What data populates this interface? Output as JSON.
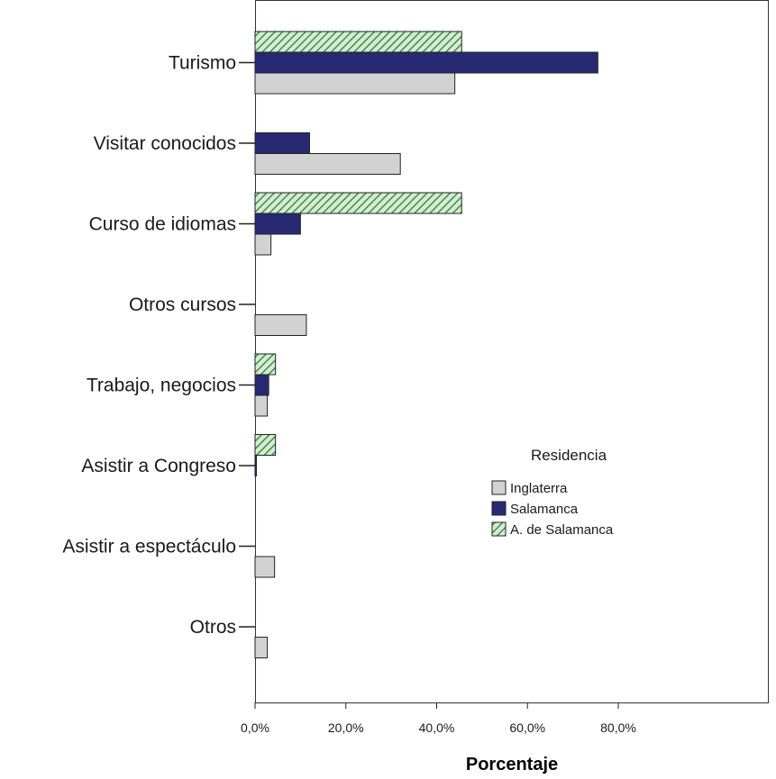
{
  "chart_data": {
    "type": "bar",
    "orientation": "horizontal",
    "categories": [
      "Turismo",
      "Visitar conocidos",
      "Curso de idiomas",
      "Otros cursos",
      "Trabajo, negocios",
      "Asistir a Congreso",
      "Asistir a espectáculo",
      "Otros"
    ],
    "series": [
      {
        "name": "A. de Salamanca",
        "values": [
          45.5,
          0,
          45.5,
          0,
          4.5,
          4.5,
          0,
          0
        ],
        "color": "#d4ecd4",
        "hatch": "diagonal"
      },
      {
        "name": "Salamanca",
        "values": [
          75.5,
          12.0,
          10.0,
          0,
          3.0,
          0.3,
          0,
          0
        ],
        "color": "#272a72"
      },
      {
        "name": "Inglaterra",
        "values": [
          44.0,
          32.0,
          3.5,
          11.3,
          2.7,
          0,
          4.3,
          2.7
        ],
        "color": "#d2d2d2"
      }
    ],
    "xlabel": "Porcentaje",
    "xlim": [
      0,
      84
    ],
    "xticks": [
      0,
      20,
      40,
      60,
      80
    ],
    "xtick_labels": [
      "0,0%",
      "20,0%",
      "40,0%",
      "60,0%",
      "80,0%"
    ],
    "grid": false,
    "legend": {
      "title": "Residencia",
      "placement": "center-right",
      "entries": [
        "Inglaterra",
        "Salamanca",
        "A. de Salamanca"
      ]
    }
  }
}
